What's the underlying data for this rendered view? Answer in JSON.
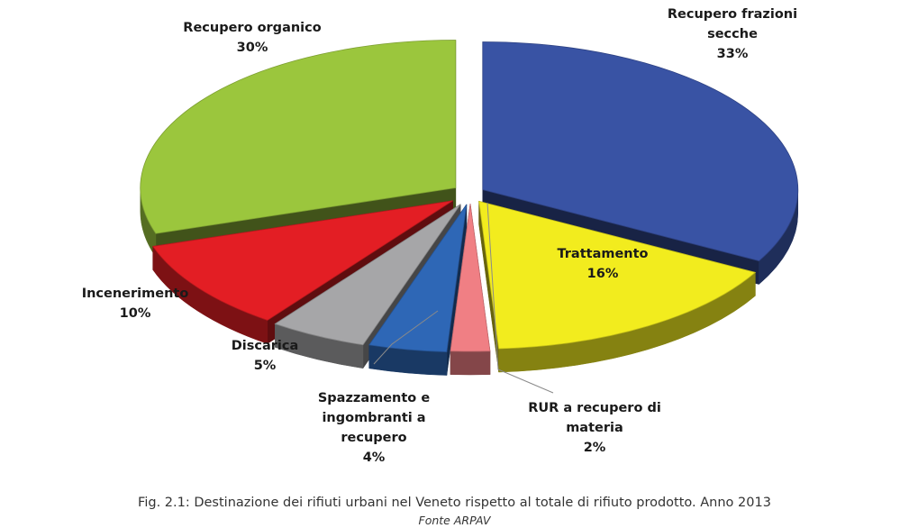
{
  "chart_data": {
    "type": "pie",
    "style": "3d-exploded",
    "title": "",
    "slices": [
      {
        "label": "Recupero frazioni secche",
        "label_lines": [
          "Recupero frazioni",
          "secche"
        ],
        "value": 33,
        "display": "33%",
        "color": "#3953A4"
      },
      {
        "label": "Trattamento",
        "label_lines": [
          "Trattamento"
        ],
        "value": 16,
        "display": "16%",
        "color": "#F2EC1E"
      },
      {
        "label": "RUR a recupero di materia",
        "label_lines": [
          "RUR a recupero di",
          "materia"
        ],
        "value": 2,
        "display": "2%",
        "color": "#F07F84"
      },
      {
        "label": "Spazzamento e ingombranti a recupero",
        "label_lines": [
          "Spazzamento e",
          "ingombranti a",
          "recupero"
        ],
        "value": 4,
        "display": "4%",
        "color": "#2E67B6"
      },
      {
        "label": "Discarica",
        "label_lines": [
          "Discarica"
        ],
        "value": 5,
        "display": "5%",
        "color": "#A6A6A8"
      },
      {
        "label": "Incenerimento",
        "label_lines": [
          "Incenerimento"
        ],
        "value": 10,
        "display": "10%",
        "color": "#E31E24"
      },
      {
        "label": "Recupero organico",
        "label_lines": [
          "Recupero organico"
        ],
        "value": 30,
        "display": "30%",
        "color": "#9BC63D"
      }
    ]
  },
  "caption": "Fig. 2.1: Destinazione dei rifiuti urbani nel Veneto rispetto al totale di rifiuto prodotto. Anno 2013",
  "source": "Fonte ARPAV"
}
